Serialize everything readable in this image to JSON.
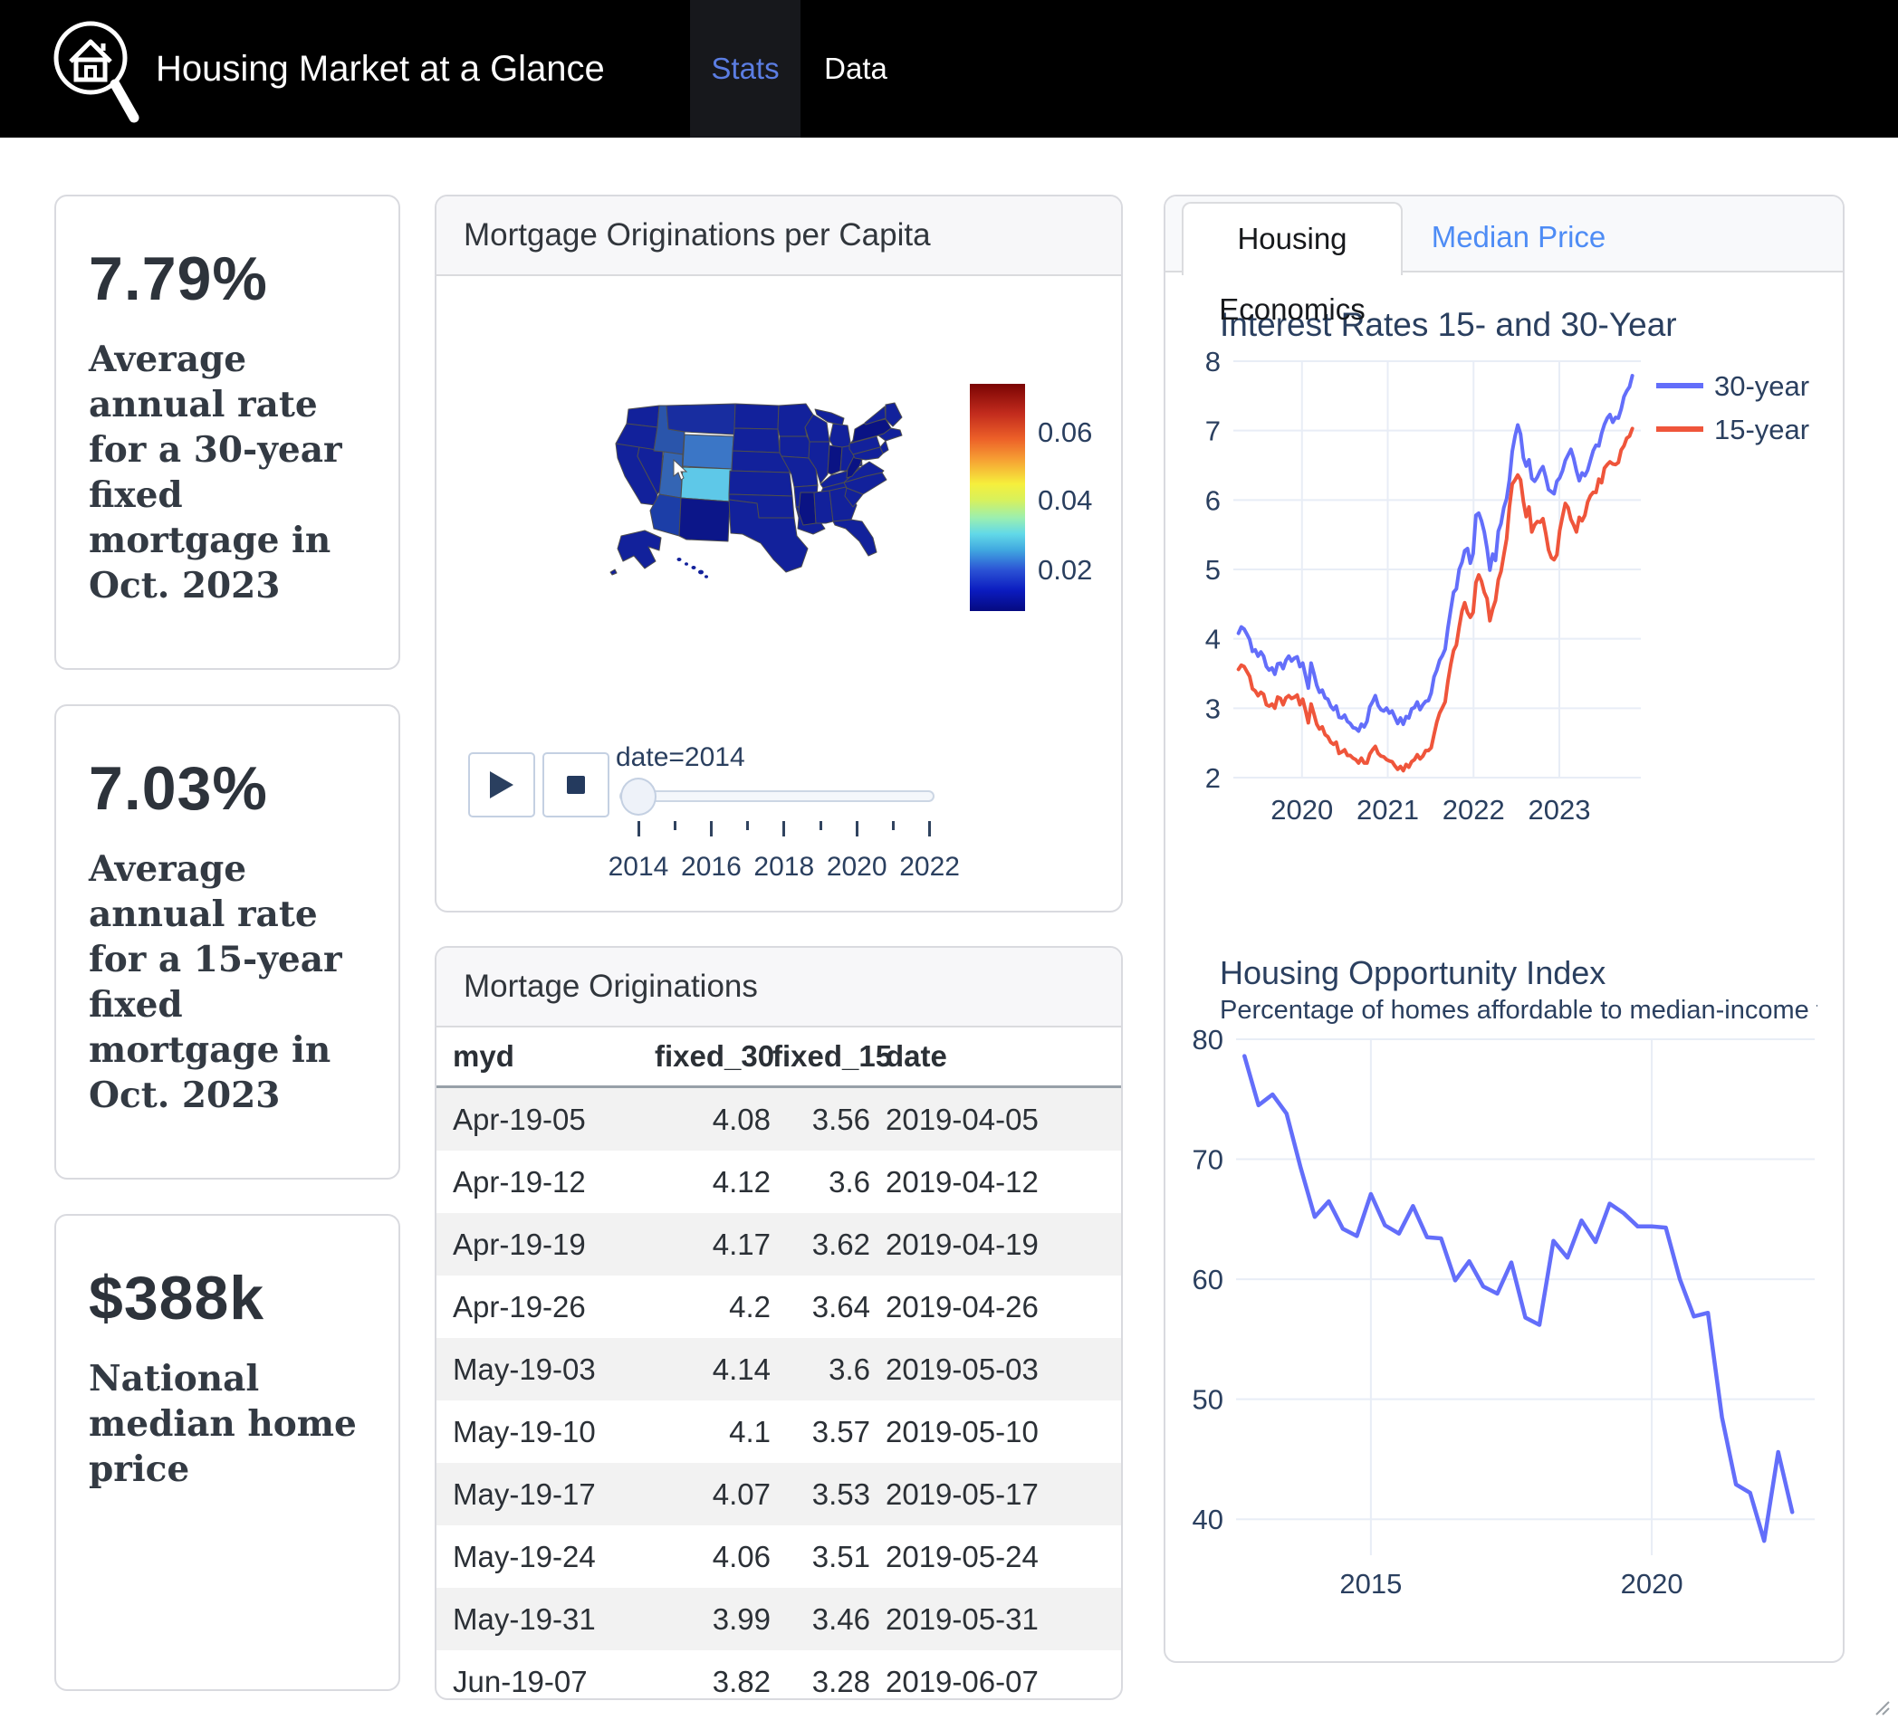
{
  "navbar": {
    "title": "Housing Market at a Glance",
    "tabs": [
      {
        "label": "Stats",
        "active": true
      },
      {
        "label": "Data",
        "active": false
      }
    ]
  },
  "stat_cards": [
    {
      "value": "7.79%",
      "description": "Average annual rate for a 30-year fixed mortgage in Oct. 2023"
    },
    {
      "value": "7.03%",
      "description": "Average annual rate for a 15-year fixed mortgage in Oct. 2023"
    },
    {
      "value": "$388k",
      "description": "National median home price"
    }
  ],
  "map_card": {
    "title": "Mortgage Originations per Capita",
    "default_state_color": "#12219b",
    "state_colors": {
      "ID": "#2a55ab",
      "MT": "#182da0",
      "WY": "#3b76c6",
      "UT": "#3465b4",
      "CO": "#5ec8e8",
      "AZ": "#1c3ea7",
      "NM": "#0c1689",
      "NY": "#0a1384",
      "IN": "#0a1384",
      "WV": "#0a1384",
      "MS": "#0a1384"
    },
    "colorbar": {
      "ticks": [
        "0.06",
        "0.04",
        "0.02"
      ]
    },
    "slider": {
      "label": "date=2014",
      "years": [
        2014,
        2015,
        2016,
        2017,
        2018,
        2019,
        2020,
        2021,
        2022
      ],
      "labeled_years": [
        2014,
        2016,
        2018,
        2020,
        2022
      ]
    }
  },
  "table_card": {
    "title": "Mortage Originations",
    "columns": [
      "myd",
      "fixed_30",
      "fixed_15",
      "date"
    ],
    "rows": [
      [
        "Apr-19-05",
        "4.08",
        "3.56",
        "2019-04-05"
      ],
      [
        "Apr-19-12",
        "4.12",
        "3.6",
        "2019-04-12"
      ],
      [
        "Apr-19-19",
        "4.17",
        "3.62",
        "2019-04-19"
      ],
      [
        "Apr-19-26",
        "4.2",
        "3.64",
        "2019-04-26"
      ],
      [
        "May-19-03",
        "4.14",
        "3.6",
        "2019-05-03"
      ],
      [
        "May-19-10",
        "4.1",
        "3.57",
        "2019-05-10"
      ],
      [
        "May-19-17",
        "4.07",
        "3.53",
        "2019-05-17"
      ],
      [
        "May-19-24",
        "4.06",
        "3.51",
        "2019-05-24"
      ],
      [
        "May-19-31",
        "3.99",
        "3.46",
        "2019-05-31"
      ],
      [
        "Jun-19-07",
        "3.82",
        "3.28",
        "2019-06-07"
      ]
    ]
  },
  "right_panel": {
    "tabs": [
      {
        "label": "Housing Economics",
        "active": true
      },
      {
        "label": "Median Price",
        "active": false
      }
    ]
  },
  "chart_data": [
    {
      "type": "line",
      "title": "Interest Rates 15- and 30-Year",
      "x_start": 2019.26,
      "x_step": 0.03256,
      "x_range": [
        2019.2,
        2023.95
      ],
      "y_range": [
        2,
        8
      ],
      "x_ticks": [
        2020,
        2021,
        2022,
        2023
      ],
      "y_ticks": [
        2,
        3,
        4,
        5,
        6,
        7,
        8
      ],
      "grid": true,
      "legend_position": "top-right",
      "series": [
        {
          "name": "30-year",
          "color": "#636efa",
          "values": [
            4.08,
            4.17,
            4.14,
            4.07,
            3.99,
            3.82,
            3.84,
            3.75,
            3.81,
            3.75,
            3.6,
            3.55,
            3.58,
            3.49,
            3.64,
            3.65,
            3.57,
            3.69,
            3.75,
            3.68,
            3.72,
            3.74,
            3.6,
            3.65,
            3.47,
            3.29,
            3.65,
            3.5,
            3.33,
            3.23,
            3.26,
            3.15,
            3.13,
            3.03,
            2.98,
            3.03,
            2.87,
            2.86,
            2.9,
            2.81,
            2.78,
            2.72,
            2.71,
            2.67,
            2.77,
            2.73,
            2.81,
            3.02,
            3.09,
            3.18,
            3.04,
            2.98,
            2.96,
            3.0,
            2.93,
            2.96,
            2.87,
            2.78,
            2.86,
            2.77,
            2.88,
            2.86,
            2.99,
            3.01,
            3.09,
            2.98,
            3.05,
            3.1,
            3.11,
            3.22,
            3.45,
            3.55,
            3.69,
            3.76,
            3.85,
            4.16,
            4.42,
            4.67,
            4.72,
            5.0,
            5.1,
            5.27,
            5.3,
            5.09,
            5.23,
            5.78,
            5.81,
            5.7,
            5.54,
            5.3,
            4.99,
            5.22,
            5.13,
            5.55,
            5.66,
            5.89,
            6.02,
            6.29,
            6.7,
            6.92,
            7.08,
            6.95,
            6.61,
            6.49,
            6.58,
            6.31,
            6.27,
            6.33,
            6.42,
            6.48,
            6.33,
            6.15,
            6.12,
            6.09,
            6.27,
            6.32,
            6.42,
            6.57,
            6.65,
            6.73,
            6.6,
            6.42,
            6.28,
            6.39,
            6.35,
            6.43,
            6.57,
            6.71,
            6.79,
            6.78,
            6.96,
            7.09,
            7.18,
            7.23,
            7.12,
            7.19,
            7.18,
            7.31,
            7.49,
            7.57,
            7.63,
            7.79
          ]
        },
        {
          "name": "15-year",
          "color": "#ef553b",
          "values": [
            3.56,
            3.62,
            3.6,
            3.53,
            3.46,
            3.28,
            3.25,
            3.18,
            3.23,
            3.2,
            3.05,
            3.03,
            3.06,
            3.0,
            3.16,
            3.14,
            3.05,
            3.15,
            3.18,
            3.14,
            3.16,
            3.19,
            3.05,
            3.13,
            2.97,
            2.79,
            3.06,
            2.92,
            2.77,
            2.7,
            2.73,
            2.62,
            2.59,
            2.51,
            2.48,
            2.51,
            2.35,
            2.37,
            2.4,
            2.32,
            2.32,
            2.28,
            2.26,
            2.21,
            2.28,
            2.21,
            2.21,
            2.34,
            2.4,
            2.45,
            2.35,
            2.31,
            2.3,
            2.26,
            2.24,
            2.23,
            2.17,
            2.12,
            2.16,
            2.1,
            2.19,
            2.15,
            2.23,
            2.26,
            2.33,
            2.27,
            2.31,
            2.39,
            2.39,
            2.43,
            2.62,
            2.8,
            2.93,
            3.01,
            3.09,
            3.39,
            3.63,
            3.83,
            3.91,
            4.17,
            4.4,
            4.52,
            4.38,
            4.31,
            4.38,
            4.81,
            4.92,
            4.83,
            4.67,
            4.58,
            4.26,
            4.43,
            4.55,
            4.85,
            4.97,
            5.21,
            5.44,
            5.9,
            6.23,
            6.29,
            6.36,
            6.29,
            5.98,
            5.76,
            5.9,
            5.54,
            5.64,
            5.69,
            5.68,
            5.73,
            5.52,
            5.28,
            5.17,
            5.14,
            5.21,
            5.56,
            5.76,
            5.95,
            5.89,
            5.72,
            5.64,
            5.54,
            5.75,
            5.7,
            5.78,
            5.97,
            6.06,
            6.11,
            6.11,
            6.3,
            6.25,
            6.46,
            6.51,
            6.55,
            6.52,
            6.51,
            6.54,
            6.72,
            6.78,
            6.89,
            6.92,
            7.03
          ]
        }
      ]
    },
    {
      "type": "line",
      "title": "Housing Opportunity Index",
      "subtitle": "Percentage of homes affordable to median-income families",
      "x_start": 2012.75,
      "x_step": 0.25,
      "x_range": [
        2012.6,
        2022.9
      ],
      "y_range": [
        37,
        80
      ],
      "x_ticks": [
        2015,
        2020
      ],
      "y_ticks": [
        40,
        50,
        60,
        70,
        80
      ],
      "grid": true,
      "legend_position": "none",
      "series": [
        {
          "name": "Housing Opportunity Index",
          "color": "#636efa",
          "values": [
            78.6,
            74.5,
            75.4,
            73.8,
            69.3,
            65.2,
            66.5,
            64.2,
            63.6,
            67.1,
            64.5,
            63.8,
            66.1,
            63.5,
            63.4,
            59.9,
            61.5,
            59.4,
            58.8,
            61.4,
            56.8,
            56.2,
            63.2,
            61.8,
            64.9,
            63.1,
            66.3,
            65.5,
            64.4,
            64.4,
            64.3,
            60.0,
            56.9,
            57.2,
            48.5,
            42.9,
            42.2,
            38.2,
            45.6,
            40.6
          ]
        }
      ]
    }
  ]
}
